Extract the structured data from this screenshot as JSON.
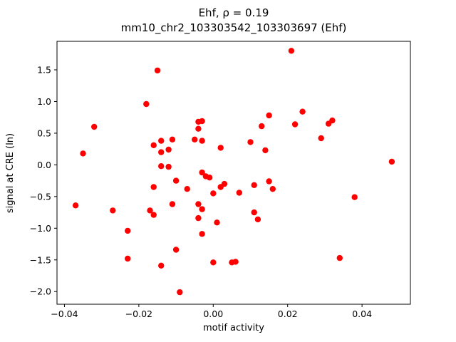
{
  "chart_data": {
    "type": "scatter",
    "title": "Ehf, ρ = 0.19",
    "subtitle": "mm10_chr2_103303542_103303697 (Ehf)",
    "xlabel": "motif activity",
    "ylabel": "signal at CRE (ln)",
    "marker_color": "#ff0000",
    "legend": "none",
    "grid": false,
    "xlim": [
      -0.042,
      0.053
    ],
    "ylim": [
      -2.2,
      1.95
    ],
    "xticks": {
      "values": [
        -0.04,
        -0.02,
        0.0,
        0.02,
        0.04
      ],
      "labels": [
        "−0.04",
        "−0.02",
        "0.00",
        "0.02",
        "0.04"
      ]
    },
    "yticks": {
      "values": [
        -2.0,
        -1.5,
        -1.0,
        -0.5,
        0.0,
        0.5,
        1.0,
        1.5
      ],
      "labels": [
        "−2.0",
        "−1.5",
        "−1.0",
        "−0.5",
        "0.0",
        "0.5",
        "1.0",
        "1.5"
      ]
    },
    "points": [
      [
        -0.037,
        -0.64
      ],
      [
        -0.035,
        0.18
      ],
      [
        -0.032,
        0.6
      ],
      [
        -0.027,
        -0.72
      ],
      [
        -0.023,
        -1.04
      ],
      [
        -0.023,
        -1.48
      ],
      [
        -0.018,
        0.96
      ],
      [
        -0.016,
        0.31
      ],
      [
        -0.016,
        -0.35
      ],
      [
        -0.017,
        -0.72
      ],
      [
        -0.016,
        -0.79
      ],
      [
        -0.015,
        1.49
      ],
      [
        -0.014,
        0.38
      ],
      [
        -0.014,
        0.2
      ],
      [
        -0.014,
        -0.02
      ],
      [
        -0.014,
        -1.59
      ],
      [
        -0.012,
        0.24
      ],
      [
        -0.012,
        -0.03
      ],
      [
        -0.011,
        -0.62
      ],
      [
        -0.011,
        0.4
      ],
      [
        -0.01,
        -0.25
      ],
      [
        -0.01,
        -1.34
      ],
      [
        -0.009,
        -2.01
      ],
      [
        -0.007,
        -0.38
      ],
      [
        -0.005,
        0.4
      ],
      [
        -0.004,
        0.68
      ],
      [
        -0.004,
        0.57
      ],
      [
        -0.004,
        -0.62
      ],
      [
        -0.004,
        -0.84
      ],
      [
        -0.003,
        0.69
      ],
      [
        -0.003,
        0.38
      ],
      [
        -0.003,
        -0.12
      ],
      [
        -0.003,
        -0.7
      ],
      [
        -0.003,
        -1.09
      ],
      [
        -0.002,
        -0.18
      ],
      [
        -0.001,
        -0.2
      ],
      [
        0.0,
        -0.45
      ],
      [
        0.0,
        -1.54
      ],
      [
        0.001,
        -0.91
      ],
      [
        0.002,
        0.27
      ],
      [
        0.002,
        -0.35
      ],
      [
        0.003,
        -0.3
      ],
      [
        0.005,
        -1.54
      ],
      [
        0.006,
        -1.53
      ],
      [
        0.007,
        -0.44
      ],
      [
        0.01,
        0.36
      ],
      [
        0.011,
        -0.32
      ],
      [
        0.011,
        -0.75
      ],
      [
        0.012,
        -0.86
      ],
      [
        0.013,
        0.61
      ],
      [
        0.014,
        0.23
      ],
      [
        0.015,
        0.78
      ],
      [
        0.015,
        -0.26
      ],
      [
        0.016,
        -0.38
      ],
      [
        0.021,
        1.8
      ],
      [
        0.022,
        0.64
      ],
      [
        0.024,
        0.84
      ],
      [
        0.029,
        0.42
      ],
      [
        0.031,
        0.65
      ],
      [
        0.032,
        0.7
      ],
      [
        0.034,
        -1.47
      ],
      [
        0.038,
        -0.51
      ],
      [
        0.048,
        0.05
      ]
    ]
  }
}
